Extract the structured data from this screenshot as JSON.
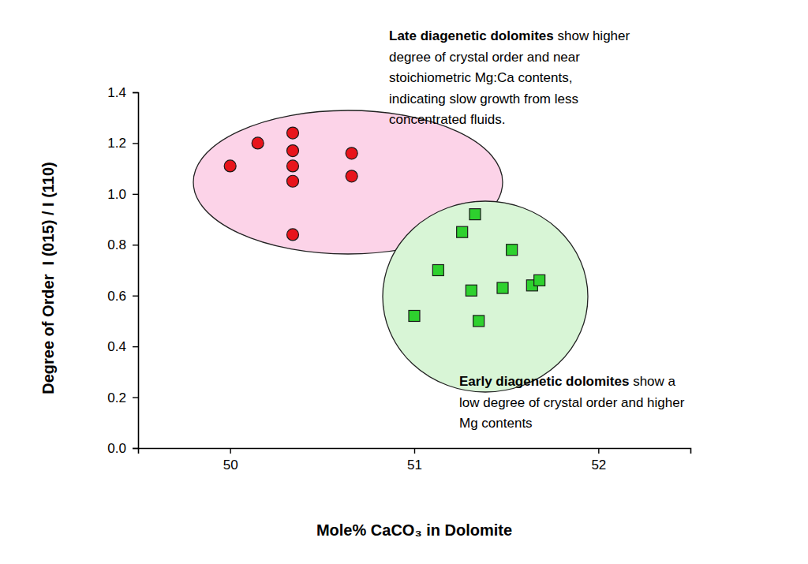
{
  "chart_data": {
    "type": "scatter",
    "x_label": "Mole% CaCO₃ in Dolomite",
    "y_label": "Degree of Order  I (015) / I (110)",
    "xlim": [
      49.5,
      52.5
    ],
    "xticks": [
      50,
      51,
      52
    ],
    "ylim": [
      0,
      1.4
    ],
    "yticks": [
      {
        "value": 0,
        "label": "0.0"
      },
      0.2,
      0.4,
      0.6,
      0.8,
      {
        "value": 1,
        "label": "1.0"
      },
      1.2,
      1.4
    ],
    "grid": false,
    "series": [
      {
        "color": "#e8141b",
        "marker": "circle",
        "x": [
          50.0,
          50.15,
          50.34,
          50.34,
          50.34,
          50.34,
          50.34,
          50.66,
          50.66
        ],
        "values": [
          1.11,
          1.2,
          1.24,
          1.17,
          1.11,
          1.05,
          0.84,
          1.16,
          1.07
        ]
      },
      {
        "color": "#2ed12e",
        "marker": "square",
        "x": [
          51.0,
          51.13,
          51.26,
          51.33,
          51.31,
          51.35,
          51.48,
          51.53,
          51.64,
          51.68
        ],
        "values": [
          0.52,
          0.7,
          0.85,
          0.92,
          0.62,
          0.5,
          0.63,
          0.78,
          0.64,
          0.66
        ]
      }
    ],
    "annotations": [
      {
        "title": "Late diagenetic dolomites",
        "lines": [
          " show higher",
          "degree of crystal order and near",
          "stoichiometric Mg:Ca contents,",
          "indicating slow growth from less",
          "concentrated fluids."
        ]
      },
      {
        "title": "Early diagenetic dolomites",
        "lines": [
          " show a",
          "low degree of crystal order and higher",
          "Mg contents"
        ]
      }
    ]
  }
}
